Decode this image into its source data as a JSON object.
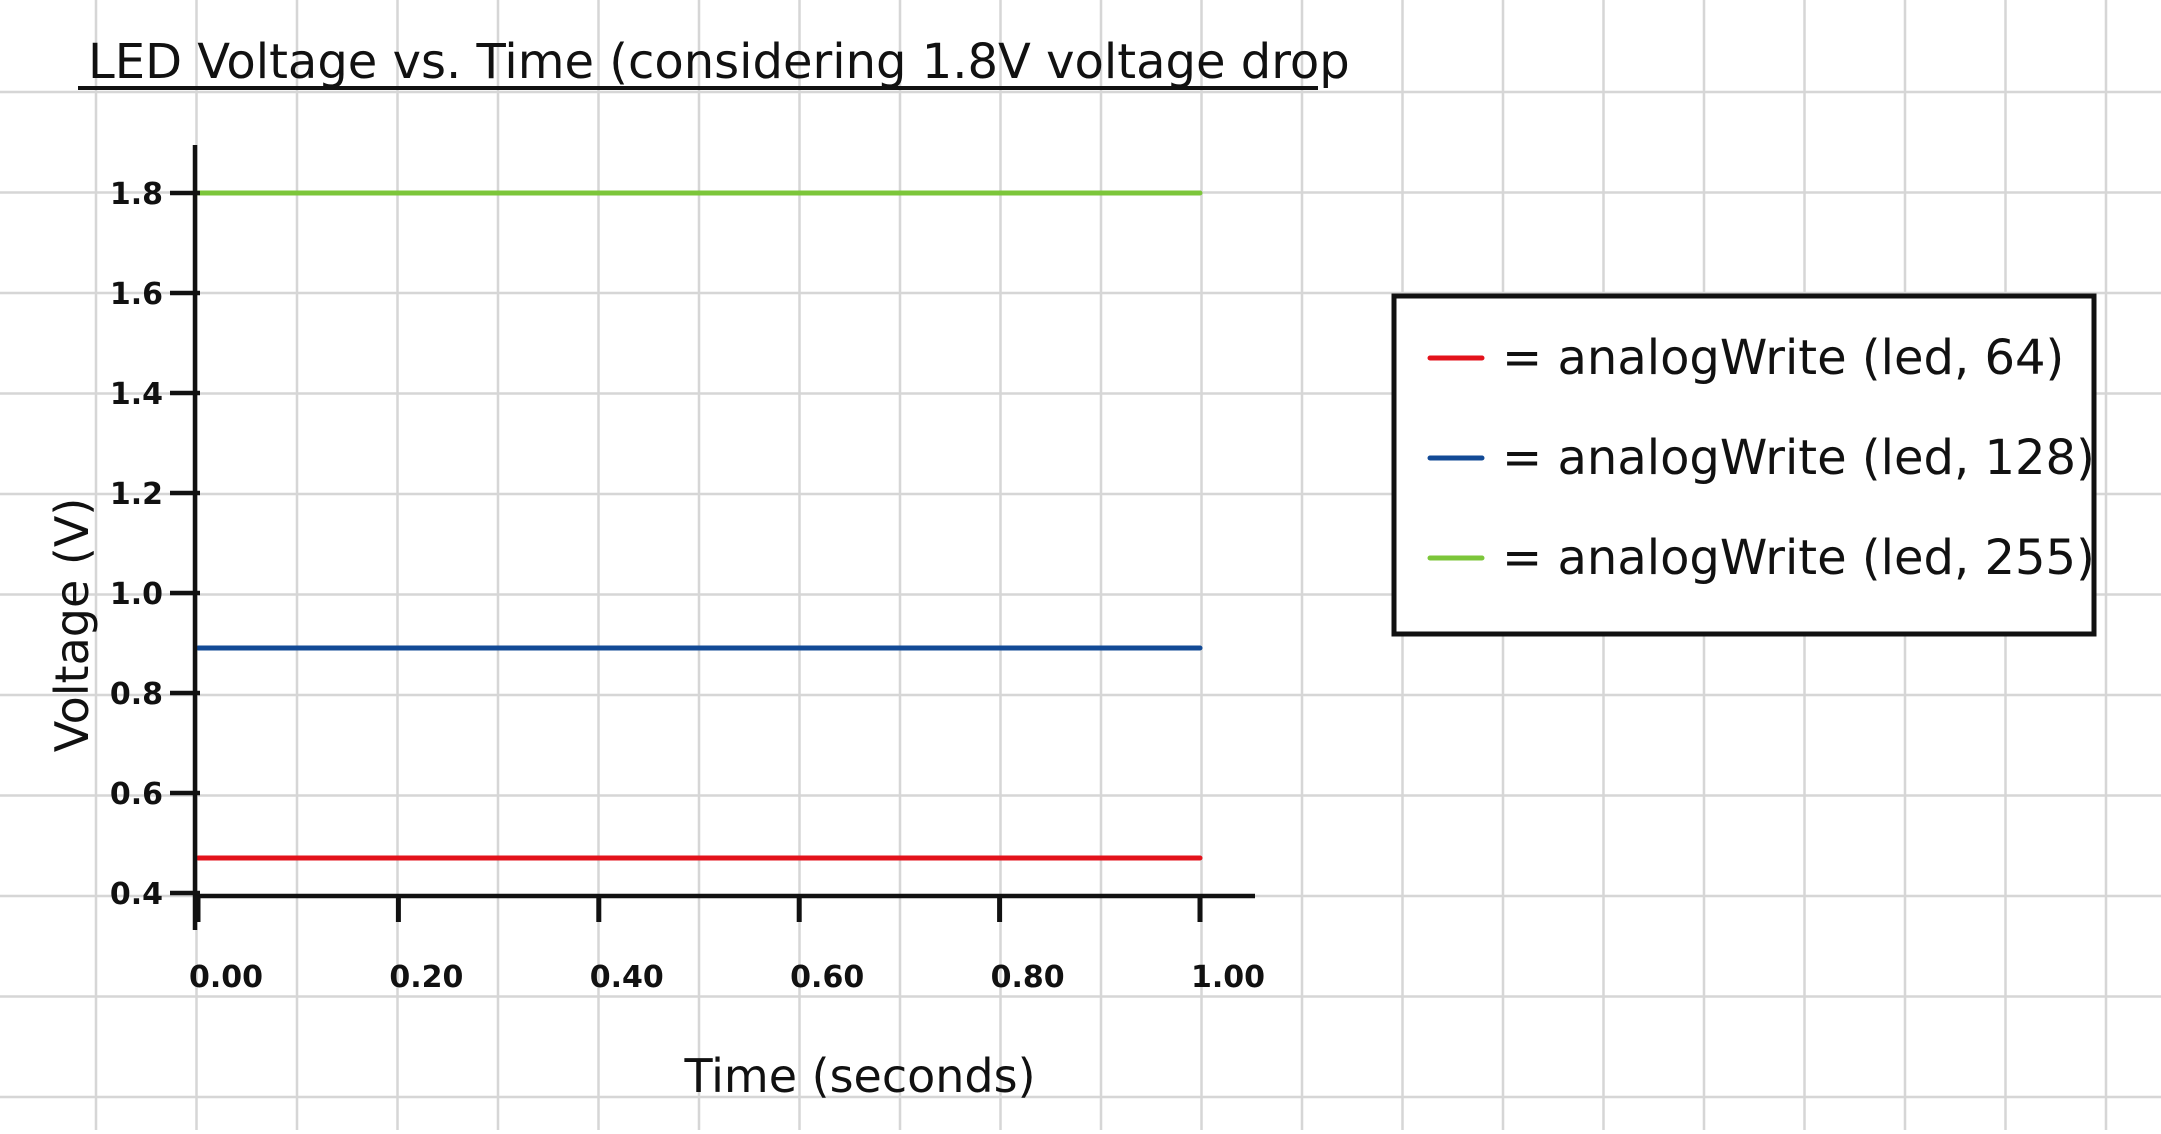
{
  "chart_data": {
    "type": "line",
    "title": "LED Voltage vs. Time (considering 1.8V voltage drop",
    "xlabel": "Time (seconds)",
    "ylabel": "Voltage (V)",
    "x": [
      0.0,
      1.0
    ],
    "xlim": [
      0.0,
      1.0
    ],
    "ylim": [
      0.4,
      1.8
    ],
    "x_ticks": [
      "0.00",
      "0.20",
      "0.40",
      "0.60",
      "0.80",
      "1.00"
    ],
    "y_ticks": [
      "1.8",
      "1.6",
      "1.4",
      "1.2",
      "1.0",
      "0.8",
      "0.6",
      "0.4"
    ],
    "grid": true,
    "legend_position": "right",
    "series": [
      {
        "name": "= analogWrite (led, 64)",
        "values": [
          0.47,
          0.47
        ],
        "color": "#e3121b"
      },
      {
        "name": "= analogWrite (led, 128)",
        "values": [
          0.89,
          0.89
        ],
        "color": "#124a96"
      },
      {
        "name": "= analogWrite (led, 255)",
        "values": [
          1.8,
          1.8
        ],
        "color": "#7cc63a"
      }
    ]
  }
}
